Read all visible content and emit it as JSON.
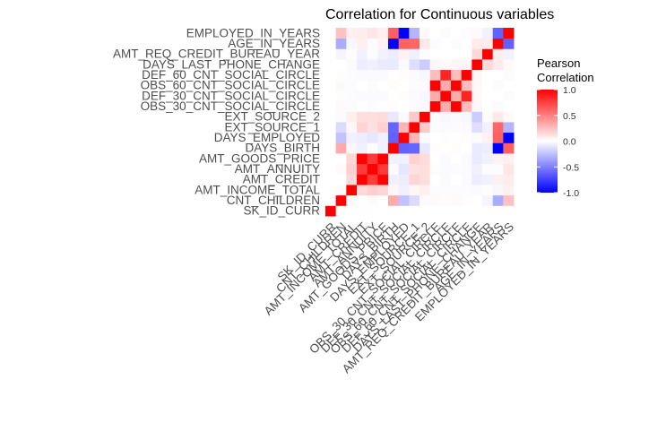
{
  "chart_data": {
    "type": "heatmap",
    "title": "Correlation for Continuous variables",
    "variables": [
      "SK_ID_CURR",
      "CNT_CHILDREN",
      "AMT_INCOME_TOTAL",
      "AMT_CREDIT",
      "AMT_ANNUITY",
      "AMT_GOODS_PRICE",
      "DAYS_BIRTH",
      "DAYS_EMPLOYED",
      "EXT_SOURCE_1",
      "EXT_SOURCE_2",
      "OBS_30_CNT_SOCIAL_CIRCLE",
      "DEF_30_CNT_SOCIAL_CIRCLE",
      "OBS_60_CNT_SOCIAL_CIRCLE",
      "DEF_60_CNT_SOCIAL_CIRCLE",
      "DAYS_LAST_PHONE_CHANGE",
      "AMT_REQ_CREDIT_BUREAU_YEAR",
      "AGE_IN_YEARS",
      "EMPLOYED_IN_YEARS"
    ],
    "legend": {
      "title_lines": [
        "Pearson",
        "Correlation"
      ],
      "ticks": [
        1.0,
        0.5,
        0.0,
        -0.5,
        -1.0
      ],
      "tick_labels": [
        "1.0",
        "0.5",
        "0.0",
        "-0.5",
        "-1.0"
      ],
      "placement": "right"
    },
    "colors": {
      "low": "#0000ff",
      "mid": "#ffffff",
      "high": "#ff0000"
    },
    "value_range": [
      -1,
      1
    ],
    "note": "values are lower-triangle correlations, row index > column index",
    "lower_triangle": [
      [],
      [
        0.0
      ],
      [
        0.0,
        0.02
      ],
      [
        0.0,
        0.0,
        0.15
      ],
      [
        0.0,
        0.02,
        0.19,
        0.77
      ],
      [
        0.0,
        0.0,
        0.16,
        0.99,
        0.78
      ],
      [
        0.0,
        0.33,
        0.03,
        -0.06,
        0.01,
        -0.05
      ],
      [
        0.0,
        -0.24,
        -0.06,
        -0.07,
        -0.1,
        -0.06,
        -0.62
      ],
      [
        0.0,
        -0.14,
        0.03,
        0.17,
        0.12,
        0.18,
        -0.6,
        0.29
      ],
      [
        0.0,
        -0.02,
        0.06,
        0.13,
        0.13,
        0.14,
        -0.09,
        -0.02,
        0.21
      ],
      [
        0.0,
        0.02,
        -0.01,
        0.0,
        -0.01,
        0.0,
        0.01,
        0.0,
        -0.01,
        -0.02
      ],
      [
        0.0,
        0.01,
        -0.01,
        -0.02,
        -0.02,
        -0.02,
        0.0,
        0.01,
        -0.02,
        -0.03,
        0.33
      ],
      [
        0.0,
        0.02,
        -0.01,
        0.0,
        -0.01,
        0.0,
        0.01,
        0.0,
        -0.01,
        -0.02,
        1.0,
        0.33
      ],
      [
        0.0,
        0.01,
        -0.01,
        -0.02,
        -0.02,
        -0.02,
        0.0,
        0.01,
        -0.02,
        -0.03,
        0.26,
        0.86,
        0.26
      ],
      [
        0.0,
        0.0,
        -0.02,
        -0.07,
        -0.06,
        -0.08,
        -0.08,
        -0.02,
        -0.13,
        -0.2,
        0.03,
        0.02,
        0.03,
        0.03
      ],
      [
        0.0,
        -0.04,
        0.01,
        -0.05,
        -0.01,
        -0.05,
        -0.07,
        0.05,
        -0.06,
        -0.01,
        0.0,
        0.0,
        0.0,
        0.0,
        0.15
      ],
      [
        0.0,
        -0.33,
        -0.03,
        0.06,
        -0.01,
        0.05,
        -1.0,
        0.62,
        0.6,
        0.09,
        -0.01,
        0.0,
        -0.01,
        0.0,
        0.08,
        0.07
      ],
      [
        0.0,
        0.24,
        0.06,
        0.07,
        0.1,
        0.06,
        0.62,
        -1.0,
        -0.29,
        0.02,
        0.0,
        -0.01,
        0.0,
        -0.01,
        0.02,
        -0.05,
        -0.62
      ]
    ]
  }
}
